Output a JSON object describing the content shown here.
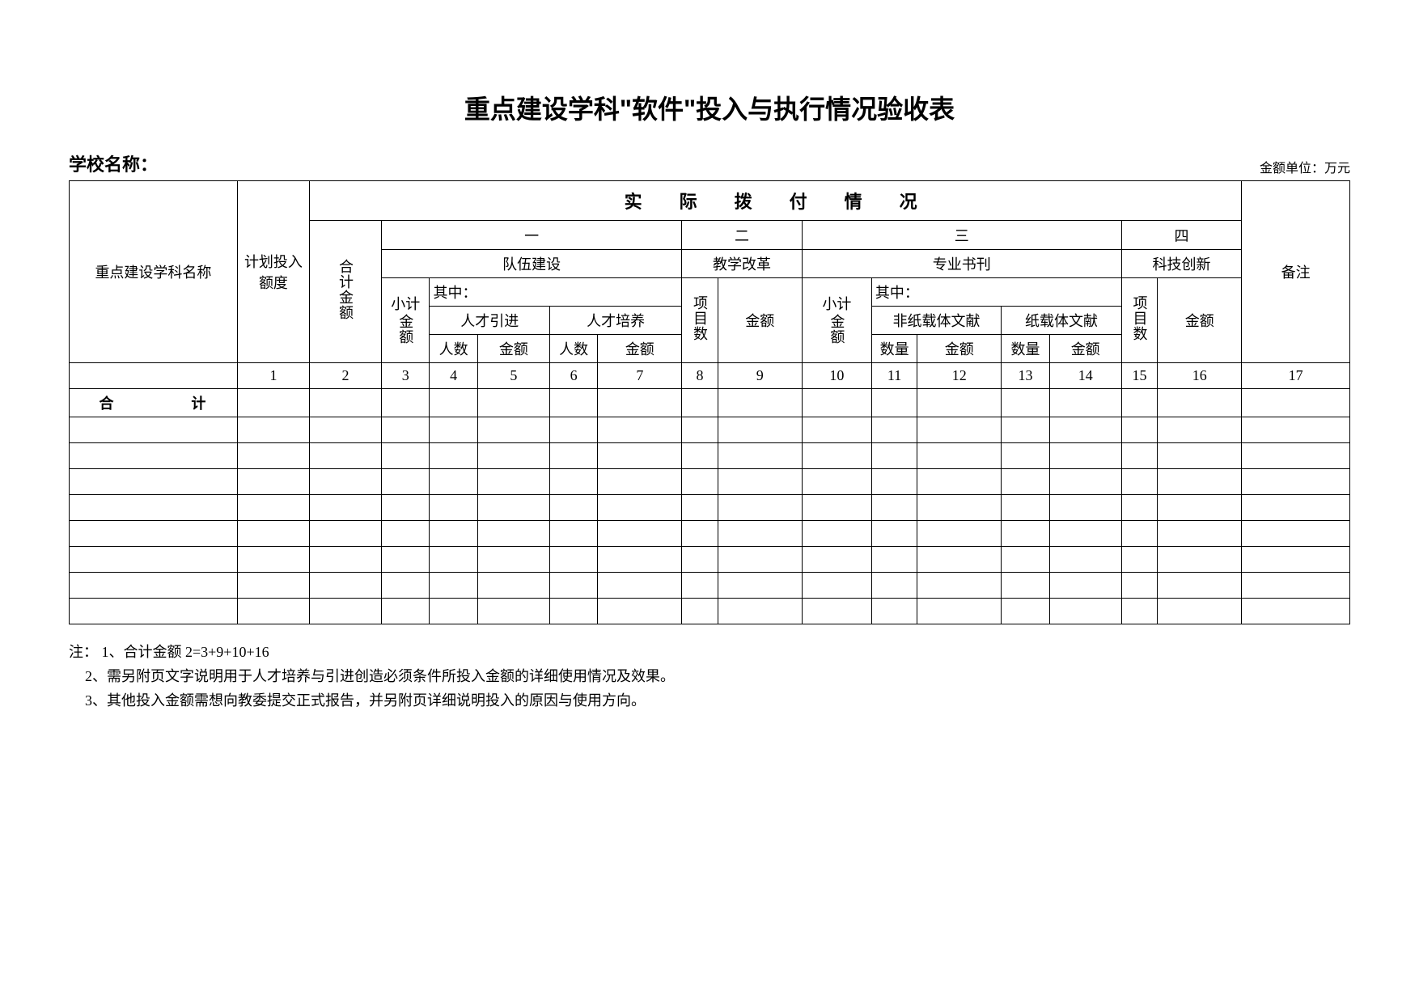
{
  "title": "重点建设学科\"软件\"投入与执行情况验收表",
  "school_label": "学校名称：",
  "unit_label": "金额单位：万元",
  "table": {
    "main_header": "实　际　拨　付　情　况",
    "col_subject": "重点建设学科名称",
    "col_plan": "计划投入额度",
    "col_total": "合计金额",
    "col_remark": "备注",
    "sections": {
      "one": "一",
      "two": "二",
      "three": "三",
      "four": "四"
    },
    "subsections": {
      "team": "队伍建设",
      "edu_reform": "教学改革",
      "journal": "专业书刊",
      "tech_innov": "科技创新"
    },
    "labels": {
      "subtotal": "小计",
      "subtotal_amt": "金额",
      "of_which": "其中：",
      "talent_in": "人才引进",
      "talent_train": "人才培养",
      "non_paper": "非纸载体文献",
      "paper": "纸载体文献",
      "count_people": "人数",
      "count_qty": "数量",
      "amount": "金额",
      "projects": "项目数"
    },
    "col_numbers": [
      "1",
      "2",
      "3",
      "4",
      "5",
      "6",
      "7",
      "8",
      "9",
      "10",
      "11",
      "12",
      "13",
      "14",
      "15",
      "16",
      "17"
    ],
    "total_row": "合　　计",
    "empty_rows": 8
  },
  "notes": {
    "line1": "注：  1、合计金额 2=3+9+10+16",
    "line2": "2、需另附页文字说明用于人才培养与引进创造必须条件所投入金额的详细使用情况及效果。",
    "line3": "3、其他投入金额需想向教委提交正式报告，并另附页详细说明投入的原因与使用方向。"
  },
  "widths": {
    "subject": 140,
    "plan": 60,
    "total": 60,
    "subtotal1": 40,
    "people1": 40,
    "amt1": 60,
    "people2": 40,
    "amt2": 70,
    "proj2": 30,
    "amt_edu": 70,
    "subtotal3": 58,
    "qty3a": 38,
    "amt3a": 70,
    "qty3b": 40,
    "amt3b": 60,
    "proj4": 30,
    "amt4": 70,
    "remark": 90
  }
}
